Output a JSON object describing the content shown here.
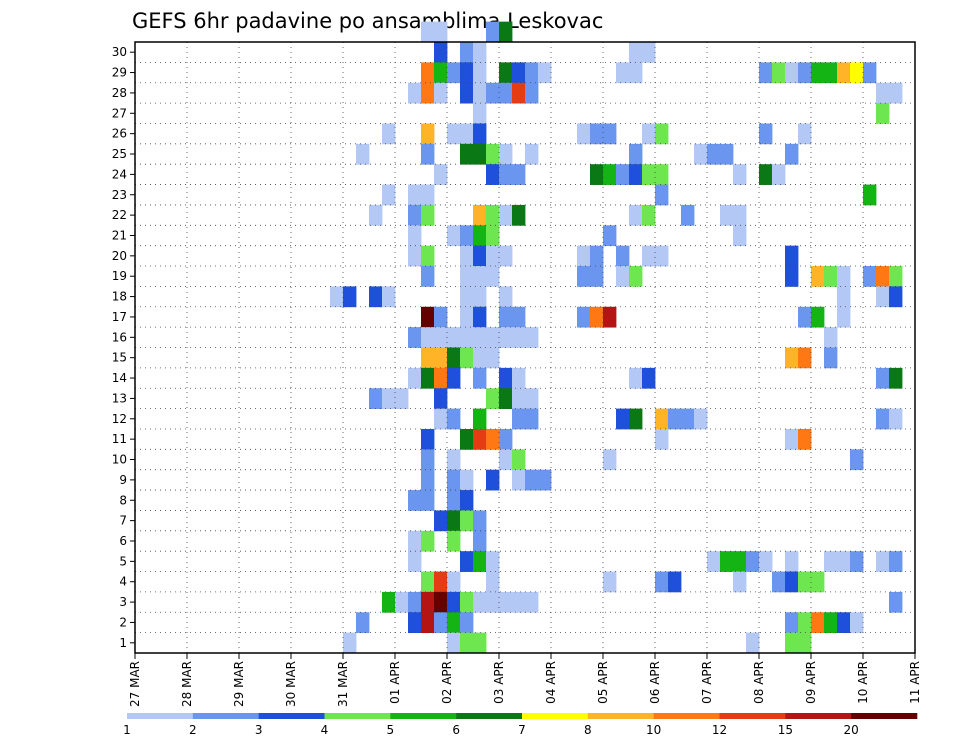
{
  "chart_data": {
    "type": "heatmap",
    "title": "GEFS 6hr padavine po ansamblima Leskovac",
    "x_tick_labels": [
      "27 MAR",
      "28 MAR",
      "29 MAR",
      "30 MAR",
      "31 MAR",
      "01 APR",
      "02 APR",
      "03 APR",
      "04 APR",
      "05 APR",
      "06 APR",
      "07 APR",
      "08 APR",
      "09 APR",
      "10 APR",
      "11 APR"
    ],
    "y_tick_labels": [
      "1",
      "2",
      "3",
      "4",
      "5",
      "6",
      "7",
      "8",
      "9",
      "10",
      "11",
      "12",
      "13",
      "14",
      "15",
      "16",
      "17",
      "18",
      "19",
      "20",
      "21",
      "22",
      "23",
      "24",
      "25",
      "26",
      "27",
      "28",
      "29",
      "30"
    ],
    "x_steps_per_day": 4,
    "x_range_steps": [
      0,
      60
    ],
    "y_range": [
      0,
      30
    ],
    "grid": true,
    "legend": {
      "position": "bottom",
      "boundaries": [
        "1",
        "2",
        "3",
        "4",
        "5",
        "6",
        "7",
        "8",
        "10",
        "12",
        "15",
        "20"
      ],
      "colors": [
        "#b4c8f5",
        "#6a96f0",
        "#1e50dc",
        "#6ee650",
        "#14b414",
        "#0a7814",
        "#ffff00",
        "#ffb428",
        "#ff7814",
        "#e63c14",
        "#b41414",
        "#640000"
      ]
    },
    "cells": [
      [
        22,
        30,
        0
      ],
      [
        23,
        30,
        0
      ],
      [
        27,
        30,
        1
      ],
      [
        28,
        30,
        5
      ],
      [
        23,
        29,
        2
      ],
      [
        25,
        29,
        1
      ],
      [
        26,
        29,
        0
      ],
      [
        38,
        29,
        0
      ],
      [
        39,
        29,
        0
      ],
      [
        22,
        28,
        8
      ],
      [
        23,
        28,
        4
      ],
      [
        24,
        28,
        1
      ],
      [
        25,
        28,
        2
      ],
      [
        26,
        28,
        0
      ],
      [
        28,
        28,
        5
      ],
      [
        29,
        28,
        2
      ],
      [
        30,
        28,
        1
      ],
      [
        31,
        28,
        0
      ],
      [
        37,
        28,
        0
      ],
      [
        38,
        28,
        0
      ],
      [
        48,
        28,
        1
      ],
      [
        49,
        28,
        3
      ],
      [
        50,
        28,
        0
      ],
      [
        51,
        28,
        1
      ],
      [
        52,
        28,
        4
      ],
      [
        53,
        28,
        4
      ],
      [
        54,
        28,
        7
      ],
      [
        55,
        28,
        6
      ],
      [
        56,
        28,
        1
      ],
      [
        21,
        27,
        0
      ],
      [
        22,
        27,
        8
      ],
      [
        23,
        27,
        0
      ],
      [
        25,
        27,
        2
      ],
      [
        26,
        27,
        0
      ],
      [
        27,
        27,
        1
      ],
      [
        28,
        27,
        1
      ],
      [
        29,
        27,
        9
      ],
      [
        30,
        27,
        1
      ],
      [
        57,
        27,
        0
      ],
      [
        58,
        27,
        0
      ],
      [
        26,
        26,
        0
      ],
      [
        57,
        26,
        3
      ],
      [
        19,
        25,
        0
      ],
      [
        22,
        25,
        7
      ],
      [
        24,
        25,
        0
      ],
      [
        25,
        25,
        0
      ],
      [
        26,
        25,
        2
      ],
      [
        34,
        25,
        0
      ],
      [
        35,
        25,
        1
      ],
      [
        36,
        25,
        1
      ],
      [
        39,
        25,
        0
      ],
      [
        40,
        25,
        3
      ],
      [
        48,
        25,
        1
      ],
      [
        51,
        25,
        0
      ],
      [
        17,
        24,
        0
      ],
      [
        22,
        24,
        1
      ],
      [
        25,
        24,
        5
      ],
      [
        26,
        24,
        5
      ],
      [
        27,
        24,
        3
      ],
      [
        28,
        24,
        0
      ],
      [
        30,
        24,
        0
      ],
      [
        38,
        24,
        1
      ],
      [
        43,
        24,
        0
      ],
      [
        44,
        24,
        1
      ],
      [
        45,
        24,
        1
      ],
      [
        50,
        24,
        1
      ],
      [
        23,
        23,
        0
      ],
      [
        27,
        23,
        2
      ],
      [
        28,
        23,
        1
      ],
      [
        29,
        23,
        1
      ],
      [
        35,
        23,
        5
      ],
      [
        36,
        23,
        4
      ],
      [
        37,
        23,
        1
      ],
      [
        38,
        23,
        2
      ],
      [
        39,
        23,
        3
      ],
      [
        40,
        23,
        3
      ],
      [
        46,
        23,
        0
      ],
      [
        48,
        23,
        5
      ],
      [
        49,
        23,
        0
      ],
      [
        19,
        22,
        0
      ],
      [
        21,
        22,
        0
      ],
      [
        22,
        22,
        0
      ],
      [
        40,
        22,
        1
      ],
      [
        56,
        22,
        4
      ],
      [
        18,
        21,
        0
      ],
      [
        21,
        21,
        1
      ],
      [
        22,
        21,
        3
      ],
      [
        26,
        21,
        7
      ],
      [
        27,
        21,
        3
      ],
      [
        28,
        21,
        0
      ],
      [
        29,
        21,
        5
      ],
      [
        38,
        21,
        0
      ],
      [
        39,
        21,
        3
      ],
      [
        42,
        21,
        1
      ],
      [
        45,
        21,
        0
      ],
      [
        46,
        21,
        0
      ],
      [
        21,
        20,
        0
      ],
      [
        24,
        20,
        0
      ],
      [
        25,
        20,
        1
      ],
      [
        26,
        20,
        4
      ],
      [
        27,
        20,
        3
      ],
      [
        36,
        20,
        1
      ],
      [
        46,
        20,
        0
      ],
      [
        21,
        19,
        0
      ],
      [
        22,
        19,
        3
      ],
      [
        25,
        19,
        0
      ],
      [
        26,
        19,
        2
      ],
      [
        27,
        19,
        0
      ],
      [
        28,
        19,
        0
      ],
      [
        34,
        19,
        0
      ],
      [
        35,
        19,
        1
      ],
      [
        37,
        19,
        1
      ],
      [
        39,
        19,
        0
      ],
      [
        40,
        19,
        0
      ],
      [
        50,
        19,
        2
      ],
      [
        22,
        18,
        1
      ],
      [
        25,
        18,
        0
      ],
      [
        26,
        18,
        0
      ],
      [
        27,
        18,
        0
      ],
      [
        34,
        18,
        1
      ],
      [
        35,
        18,
        1
      ],
      [
        37,
        18,
        0
      ],
      [
        38,
        18,
        3
      ],
      [
        50,
        18,
        2
      ],
      [
        52,
        18,
        7
      ],
      [
        53,
        18,
        3
      ],
      [
        54,
        18,
        0
      ],
      [
        56,
        18,
        1
      ],
      [
        57,
        18,
        8
      ],
      [
        58,
        18,
        3
      ],
      [
        15,
        17,
        0
      ],
      [
        16,
        17,
        2
      ],
      [
        18,
        17,
        2
      ],
      [
        19,
        17,
        0
      ],
      [
        25,
        17,
        0
      ],
      [
        26,
        17,
        0
      ],
      [
        28,
        17,
        0
      ],
      [
        54,
        17,
        0
      ],
      [
        57,
        17,
        0
      ],
      [
        58,
        17,
        2
      ],
      [
        22,
        16,
        11
      ],
      [
        23,
        16,
        1
      ],
      [
        25,
        16,
        0
      ],
      [
        26,
        16,
        2
      ],
      [
        28,
        16,
        1
      ],
      [
        29,
        16,
        1
      ],
      [
        34,
        16,
        1
      ],
      [
        35,
        16,
        8
      ],
      [
        36,
        16,
        10
      ],
      [
        51,
        16,
        1
      ],
      [
        52,
        16,
        4
      ],
      [
        54,
        16,
        0
      ],
      [
        21,
        15,
        1
      ],
      [
        22,
        15,
        0
      ],
      [
        23,
        15,
        0
      ],
      [
        24,
        15,
        0
      ],
      [
        25,
        15,
        0
      ],
      [
        26,
        15,
        0
      ],
      [
        27,
        15,
        0
      ],
      [
        28,
        15,
        0
      ],
      [
        29,
        15,
        0
      ],
      [
        30,
        15,
        0
      ],
      [
        53,
        15,
        0
      ],
      [
        22,
        14,
        7
      ],
      [
        23,
        14,
        7
      ],
      [
        24,
        14,
        5
      ],
      [
        25,
        14,
        3
      ],
      [
        26,
        14,
        0
      ],
      [
        27,
        14,
        0
      ],
      [
        50,
        14,
        7
      ],
      [
        51,
        14,
        8
      ],
      [
        53,
        14,
        1
      ],
      [
        21,
        13,
        0
      ],
      [
        22,
        13,
        5
      ],
      [
        23,
        13,
        8
      ],
      [
        24,
        13,
        2
      ],
      [
        26,
        13,
        1
      ],
      [
        28,
        13,
        2
      ],
      [
        29,
        13,
        0
      ],
      [
        38,
        13,
        0
      ],
      [
        39,
        13,
        2
      ],
      [
        57,
        13,
        1
      ],
      [
        58,
        13,
        5
      ],
      [
        18,
        12,
        1
      ],
      [
        19,
        12,
        0
      ],
      [
        20,
        12,
        0
      ],
      [
        23,
        12,
        2
      ],
      [
        27,
        12,
        3
      ],
      [
        28,
        12,
        5
      ],
      [
        29,
        12,
        0
      ],
      [
        30,
        12,
        0
      ],
      [
        23,
        11,
        0
      ],
      [
        24,
        11,
        1
      ],
      [
        26,
        11,
        4
      ],
      [
        29,
        11,
        1
      ],
      [
        30,
        11,
        1
      ],
      [
        37,
        11,
        2
      ],
      [
        38,
        11,
        5
      ],
      [
        40,
        11,
        7
      ],
      [
        41,
        11,
        1
      ],
      [
        42,
        11,
        1
      ],
      [
        43,
        11,
        0
      ],
      [
        57,
        11,
        1
      ],
      [
        58,
        11,
        0
      ],
      [
        22,
        10,
        2
      ],
      [
        25,
        10,
        5
      ],
      [
        26,
        10,
        9
      ],
      [
        27,
        10,
        8
      ],
      [
        28,
        10,
        1
      ],
      [
        40,
        10,
        0
      ],
      [
        50,
        10,
        0
      ],
      [
        51,
        10,
        8
      ],
      [
        22,
        9,
        1
      ],
      [
        24,
        9,
        0
      ],
      [
        28,
        9,
        0
      ],
      [
        29,
        9,
        3
      ],
      [
        36,
        9,
        0
      ],
      [
        55,
        9,
        1
      ],
      [
        22,
        8,
        1
      ],
      [
        24,
        8,
        1
      ],
      [
        25,
        8,
        0
      ],
      [
        27,
        8,
        2
      ],
      [
        29,
        8,
        0
      ],
      [
        30,
        8,
        1
      ],
      [
        31,
        8,
        1
      ],
      [
        21,
        7,
        1
      ],
      [
        22,
        7,
        1
      ],
      [
        24,
        7,
        1
      ],
      [
        25,
        7,
        2
      ],
      [
        23,
        6,
        2
      ],
      [
        24,
        6,
        5
      ],
      [
        25,
        6,
        3
      ],
      [
        26,
        6,
        1
      ],
      [
        21,
        5,
        0
      ],
      [
        22,
        5,
        3
      ],
      [
        24,
        5,
        3
      ],
      [
        26,
        5,
        1
      ],
      [
        21,
        4,
        0
      ],
      [
        25,
        4,
        2
      ],
      [
        26,
        4,
        4
      ],
      [
        27,
        4,
        0
      ],
      [
        44,
        4,
        0
      ],
      [
        45,
        4,
        4
      ],
      [
        46,
        4,
        4
      ],
      [
        47,
        4,
        1
      ],
      [
        48,
        4,
        0
      ],
      [
        50,
        4,
        0
      ],
      [
        53,
        4,
        0
      ],
      [
        54,
        4,
        0
      ],
      [
        55,
        4,
        1
      ],
      [
        57,
        4,
        0
      ],
      [
        58,
        4,
        1
      ],
      [
        22,
        3,
        3
      ],
      [
        23,
        3,
        9
      ],
      [
        24,
        3,
        0
      ],
      [
        27,
        3,
        0
      ],
      [
        36,
        3,
        0
      ],
      [
        40,
        3,
        1
      ],
      [
        41,
        3,
        2
      ],
      [
        46,
        3,
        0
      ],
      [
        49,
        3,
        1
      ],
      [
        50,
        3,
        2
      ],
      [
        51,
        3,
        3
      ],
      [
        52,
        3,
        3
      ],
      [
        19,
        2,
        4
      ],
      [
        20,
        2,
        0
      ],
      [
        21,
        2,
        1
      ],
      [
        22,
        2,
        10
      ],
      [
        23,
        2,
        11
      ],
      [
        24,
        2,
        2
      ],
      [
        25,
        2,
        3
      ],
      [
        26,
        2,
        0
      ],
      [
        27,
        2,
        0
      ],
      [
        28,
        2,
        0
      ],
      [
        29,
        2,
        0
      ],
      [
        30,
        2,
        0
      ],
      [
        58,
        2,
        1
      ],
      [
        17,
        1,
        1
      ],
      [
        21,
        1,
        2
      ],
      [
        22,
        1,
        10
      ],
      [
        23,
        1,
        1
      ],
      [
        24,
        1,
        4
      ],
      [
        25,
        1,
        1
      ],
      [
        50,
        1,
        1
      ],
      [
        51,
        1,
        3
      ],
      [
        52,
        1,
        8
      ],
      [
        53,
        1,
        4
      ],
      [
        54,
        1,
        2
      ],
      [
        55,
        1,
        0
      ],
      [
        16,
        0,
        0
      ],
      [
        24,
        0,
        0
      ],
      [
        25,
        0,
        3
      ],
      [
        26,
        0,
        3
      ],
      [
        47,
        0,
        0
      ],
      [
        50,
        0,
        3
      ],
      [
        51,
        0,
        3
      ]
    ]
  }
}
